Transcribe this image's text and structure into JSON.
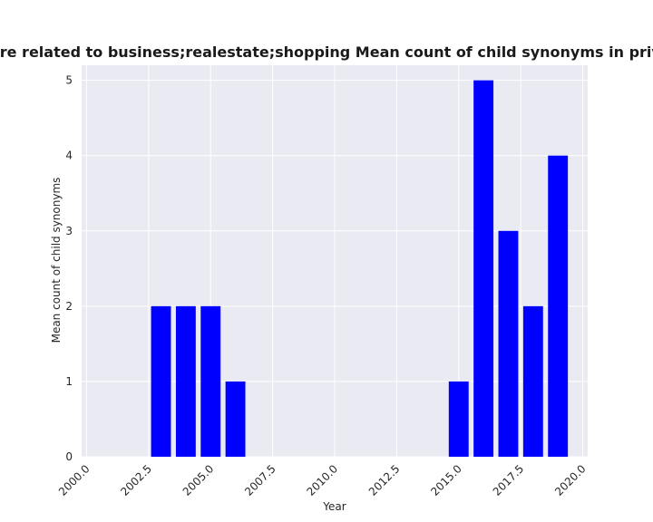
{
  "chart_data": {
    "type": "bar",
    "title": "Categories are related to business;realestate;shopping Mean count of child synonyms in privacy policies",
    "xlabel": "Year",
    "ylabel": "Mean count of child synonyms",
    "x": [
      2003,
      2004,
      2005,
      2006,
      2015,
      2016,
      2017,
      2018,
      2019
    ],
    "values": [
      2,
      2,
      2,
      1,
      1,
      5,
      3,
      2,
      4
    ],
    "xlim": [
      1999.8,
      2020.2
    ],
    "ylim": [
      0,
      5.2
    ],
    "xticks": [
      "2000.0",
      "2002.5",
      "2005.0",
      "2007.5",
      "2010.0",
      "2012.5",
      "2015.0",
      "2017.5",
      "2020.0"
    ],
    "yticks": [
      "0",
      "1",
      "2",
      "3",
      "4",
      "5"
    ],
    "bar_color": "#0000ff",
    "plot_background": "#eaeaf2",
    "grid": true,
    "legend": "none"
  }
}
